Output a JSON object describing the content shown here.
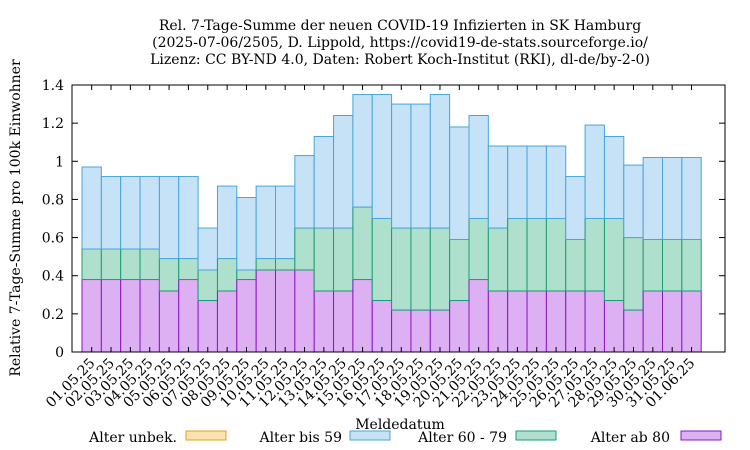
{
  "chart_data": {
    "type": "bar",
    "stacked": true,
    "title": [
      "Rel. 7-Tage-Summe der neuen COVID-19 Infizierten in SK Hamburg",
      "(2025-07-06/2505, D. Lippold, https://covid19-de-stats.sourceforge.io/",
      "Lizenz: CC BY-ND 4.0, Daten: Robert Koch-Institut (RKI), dl-de/by-2-0)"
    ],
    "xlabel": "Meldedatum",
    "ylabel": "Relative 7-Tage-Summe pro 100k Einwohner",
    "ylim": [
      0,
      1.4
    ],
    "yticks": [
      "0",
      "0.2",
      "0.4",
      "0.6",
      "0.8",
      "1",
      "1.2",
      "1.4"
    ],
    "grid": false,
    "legend_position": "bottom",
    "categories": [
      "01.05.25",
      "02.05.25",
      "03.05.25",
      "04.05.25",
      "05.05.25",
      "06.05.25",
      "07.05.25",
      "08.05.25",
      "09.05.25",
      "10.05.25",
      "11.05.25",
      "12.05.25",
      "13.05.25",
      "14.05.25",
      "15.05.25",
      "16.05.25",
      "17.05.25",
      "18.05.25",
      "19.05.25",
      "20.05.25",
      "21.05.25",
      "22.05.25",
      "23.05.25",
      "24.05.25",
      "25.05.25",
      "26.05.25",
      "27.05.25",
      "28.05.25",
      "29.05.25",
      "30.05.25",
      "31.05.25",
      "01.06.25"
    ],
    "series": [
      {
        "name": "Alter ab 80",
        "fill": "#dcb0f2",
        "stroke": "#8a17c4",
        "values": [
          0.38,
          0.38,
          0.38,
          0.38,
          0.32,
          0.38,
          0.27,
          0.32,
          0.38,
          0.43,
          0.43,
          0.43,
          0.32,
          0.32,
          0.38,
          0.27,
          0.22,
          0.22,
          0.22,
          0.27,
          0.38,
          0.32,
          0.32,
          0.32,
          0.32,
          0.32,
          0.32,
          0.27,
          0.22,
          0.32,
          0.32,
          0.32
        ]
      },
      {
        "name": "Alter 60 - 79",
        "fill": "#aee0cd",
        "stroke": "#1e9c74",
        "values": [
          0.16,
          0.16,
          0.16,
          0.16,
          0.17,
          0.11,
          0.16,
          0.17,
          0.05,
          0.06,
          0.06,
          0.22,
          0.33,
          0.33,
          0.38,
          0.43,
          0.43,
          0.43,
          0.43,
          0.32,
          0.32,
          0.33,
          0.38,
          0.38,
          0.38,
          0.27,
          0.38,
          0.43,
          0.38,
          0.27,
          0.27,
          0.27
        ]
      },
      {
        "name": "Alter bis 59",
        "fill": "#c6e2f7",
        "stroke": "#48a6d8",
        "values": [
          0.43,
          0.38,
          0.38,
          0.38,
          0.43,
          0.43,
          0.22,
          0.38,
          0.38,
          0.38,
          0.38,
          0.38,
          0.48,
          0.59,
          0.59,
          0.65,
          0.65,
          0.65,
          0.7,
          0.59,
          0.54,
          0.43,
          0.38,
          0.38,
          0.38,
          0.33,
          0.49,
          0.43,
          0.38,
          0.43,
          0.43,
          0.43
        ]
      },
      {
        "name": "Alter unbek.",
        "fill": "#fbe2b0",
        "stroke": "#e3a018",
        "values": [
          0,
          0,
          0,
          0,
          0,
          0,
          0,
          0,
          0,
          0,
          0,
          0,
          0,
          0,
          0,
          0,
          0,
          0,
          0,
          0,
          0,
          0,
          0,
          0,
          0,
          0,
          0,
          0,
          0,
          0,
          0,
          0
        ]
      }
    ],
    "legend_order": [
      "Alter unbek.",
      "Alter bis 59",
      "Alter 60 - 79",
      "Alter ab 80"
    ]
  }
}
